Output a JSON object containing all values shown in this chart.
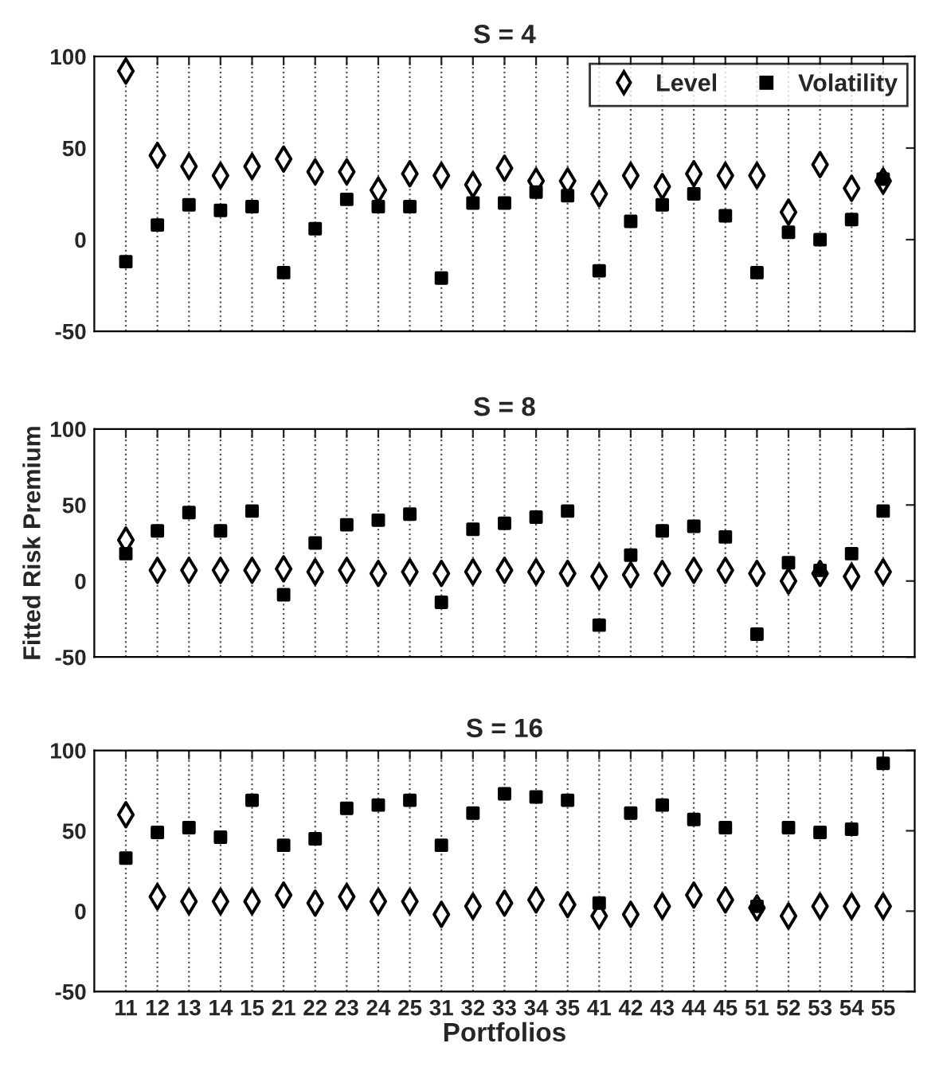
{
  "chart_data": [
    {
      "type": "scatter",
      "title": "S = 4",
      "categories": [
        "11",
        "12",
        "13",
        "14",
        "15",
        "21",
        "22",
        "23",
        "24",
        "25",
        "31",
        "32",
        "33",
        "34",
        "35",
        "41",
        "42",
        "43",
        "44",
        "45",
        "51",
        "52",
        "53",
        "54",
        "55"
      ],
      "tick_labels": "y",
      "ylim": [
        -50,
        100
      ],
      "yticks": [
        -50,
        0,
        50,
        100
      ],
      "grid": "x",
      "legend": "top right",
      "series": [
        {
          "name": "Level",
          "color": "#000000",
          "marker": "diamond",
          "values": [
            92,
            46,
            40,
            35,
            40,
            44,
            37,
            37,
            27,
            36,
            35,
            30,
            39,
            32,
            32,
            25,
            35,
            29,
            36,
            35,
            35,
            15,
            41,
            28,
            32
          ]
        },
        {
          "name": "Volatility",
          "color": "#000000",
          "marker": "square",
          "values": [
            -12,
            8,
            19,
            16,
            18,
            -18,
            6,
            22,
            18,
            18,
            -21,
            20,
            20,
            26,
            24,
            -17,
            10,
            19,
            25,
            13,
            -18,
            4,
            0,
            11,
            33
          ]
        }
      ]
    },
    {
      "type": "scatter",
      "title": "S = 8",
      "ylabel": "Fitted Risk Premium",
      "categories": [
        "11",
        "12",
        "13",
        "14",
        "15",
        "21",
        "22",
        "23",
        "24",
        "25",
        "31",
        "32",
        "33",
        "34",
        "35",
        "41",
        "42",
        "43",
        "44",
        "45",
        "51",
        "52",
        "53",
        "54",
        "55"
      ],
      "tick_labels": "y",
      "ylim": [
        -50,
        100
      ],
      "yticks": [
        -50,
        0,
        50,
        100
      ],
      "grid": "x",
      "series": [
        {
          "color": "#000000",
          "marker": "diamond",
          "values": [
            27,
            7,
            7,
            7,
            7,
            8,
            6,
            7,
            5,
            6,
            5,
            6,
            7,
            6,
            5,
            3,
            4,
            5,
            7,
            7,
            5,
            0,
            5,
            3,
            6
          ]
        },
        {
          "color": "#000000",
          "marker": "square",
          "values": [
            18,
            33,
            45,
            33,
            46,
            -9,
            25,
            37,
            40,
            44,
            -14,
            34,
            38,
            42,
            46,
            -29,
            17,
            33,
            36,
            29,
            -35,
            12,
            7,
            18,
            46
          ]
        }
      ]
    },
    {
      "type": "scatter",
      "title": "S = 16",
      "xlabel": "Portfolios",
      "categories": [
        "11",
        "12",
        "13",
        "14",
        "15",
        "21",
        "22",
        "23",
        "24",
        "25",
        "31",
        "32",
        "33",
        "34",
        "35",
        "41",
        "42",
        "43",
        "44",
        "45",
        "51",
        "52",
        "53",
        "54",
        "55"
      ],
      "ylim": [
        -50,
        100
      ],
      "yticks": [
        -50,
        0,
        50,
        100
      ],
      "grid": "x",
      "series": [
        {
          "color": "#000000",
          "marker": "diamond",
          "values": [
            60,
            9,
            6,
            6,
            6,
            10,
            5,
            9,
            6,
            6,
            -2,
            3,
            5,
            7,
            4,
            -3,
            -2,
            3,
            10,
            7,
            2,
            -3,
            3,
            3,
            3
          ]
        },
        {
          "color": "#000000",
          "marker": "square",
          "values": [
            33,
            49,
            52,
            46,
            69,
            41,
            45,
            64,
            66,
            69,
            41,
            61,
            73,
            71,
            69,
            5,
            61,
            66,
            57,
            52,
            3,
            52,
            49,
            51,
            92
          ]
        }
      ]
    }
  ]
}
